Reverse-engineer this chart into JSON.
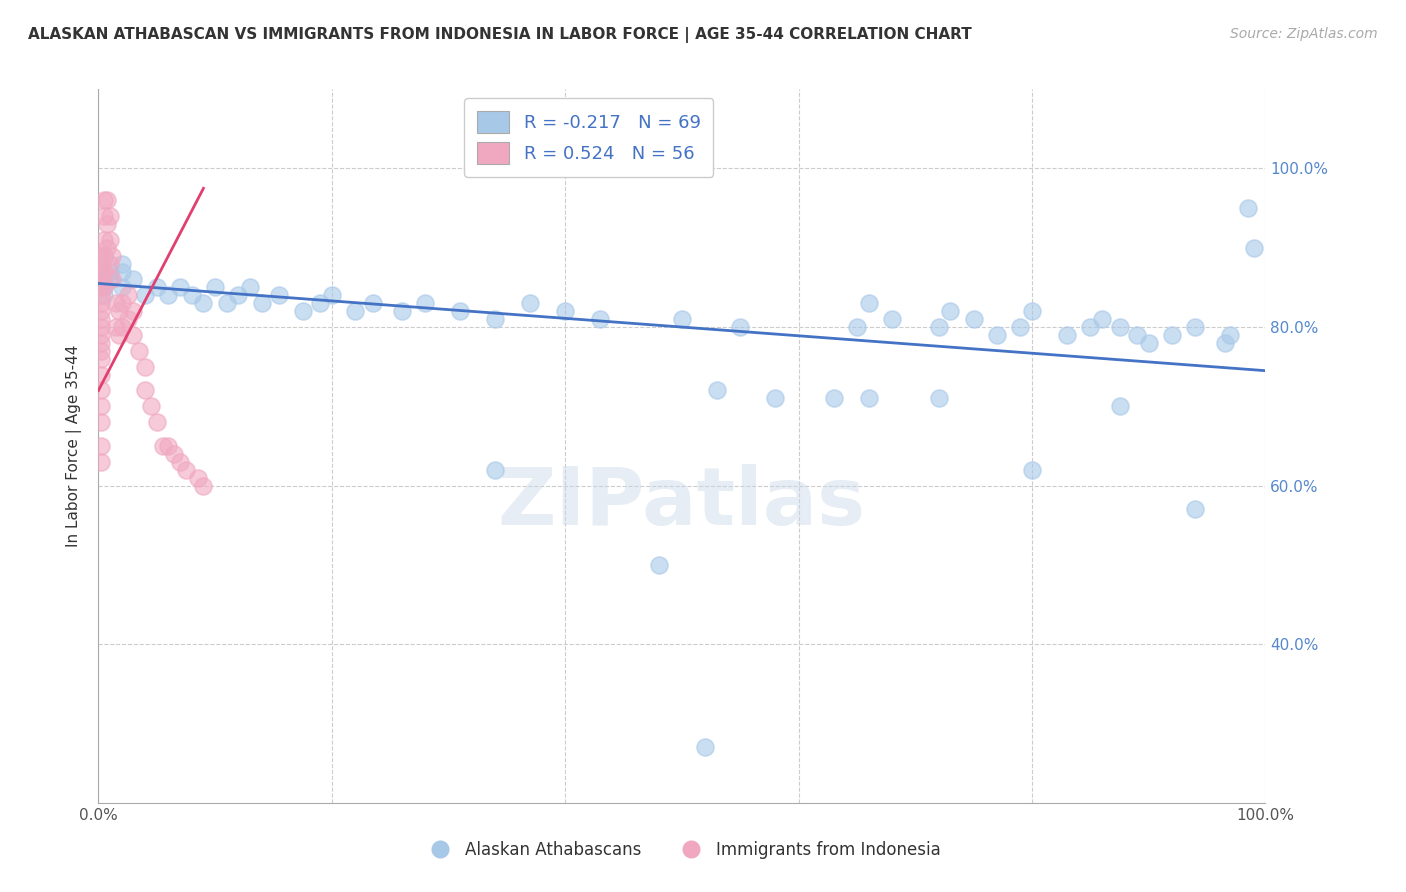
{
  "title": "ALASKAN ATHABASCAN VS IMMIGRANTS FROM INDONESIA IN LABOR FORCE | AGE 35-44 CORRELATION CHART",
  "source": "Source: ZipAtlas.com",
  "ylabel": "In Labor Force | Age 35-44",
  "xlim": [
    0.0,
    1.0
  ],
  "ylim": [
    0.2,
    1.1
  ],
  "legend_r_blue": "-0.217",
  "legend_n_blue": "69",
  "legend_r_pink": "0.524",
  "legend_n_pink": "56",
  "legend_label_blue": "Alaskan Athabascans",
  "legend_label_pink": "Immigrants from Indonesia",
  "blue_color": "#a8c8e8",
  "pink_color": "#f0a8c0",
  "trend_blue_color": "#4472c4",
  "trend_pink_color": "#e04070",
  "blue_scatter_x": [
    0.005,
    0.005,
    0.005,
    0.005,
    0.005,
    0.01,
    0.01,
    0.02,
    0.02,
    0.02,
    0.03,
    0.04,
    0.05,
    0.06,
    0.07,
    0.08,
    0.09,
    0.1,
    0.11,
    0.12,
    0.13,
    0.14,
    0.155,
    0.175,
    0.19,
    0.2,
    0.22,
    0.235,
    0.26,
    0.28,
    0.31,
    0.34,
    0.37,
    0.4,
    0.43,
    0.5,
    0.53,
    0.55,
    0.58,
    0.63,
    0.65,
    0.66,
    0.68,
    0.72,
    0.73,
    0.75,
    0.77,
    0.79,
    0.8,
    0.83,
    0.85,
    0.86,
    0.875,
    0.89,
    0.9,
    0.92,
    0.94,
    0.965,
    0.985,
    0.66,
    0.72,
    0.8,
    0.875,
    0.94,
    0.97,
    0.99,
    0.52,
    0.34,
    0.48
  ],
  "blue_scatter_y": [
    0.89,
    0.87,
    0.86,
    0.85,
    0.84,
    0.87,
    0.86,
    0.88,
    0.87,
    0.85,
    0.86,
    0.84,
    0.85,
    0.84,
    0.85,
    0.84,
    0.83,
    0.85,
    0.83,
    0.84,
    0.85,
    0.83,
    0.84,
    0.82,
    0.83,
    0.84,
    0.82,
    0.83,
    0.82,
    0.83,
    0.82,
    0.81,
    0.83,
    0.82,
    0.81,
    0.81,
    0.72,
    0.8,
    0.71,
    0.71,
    0.8,
    0.83,
    0.81,
    0.8,
    0.82,
    0.81,
    0.79,
    0.8,
    0.82,
    0.79,
    0.8,
    0.81,
    0.8,
    0.79,
    0.78,
    0.79,
    0.8,
    0.78,
    0.95,
    0.71,
    0.71,
    0.62,
    0.7,
    0.57,
    0.79,
    0.9,
    0.27,
    0.62,
    0.5
  ],
  "pink_scatter_x": [
    0.002,
    0.002,
    0.002,
    0.002,
    0.002,
    0.002,
    0.002,
    0.002,
    0.002,
    0.002,
    0.002,
    0.002,
    0.002,
    0.002,
    0.002,
    0.002,
    0.002,
    0.002,
    0.002,
    0.002,
    0.005,
    0.005,
    0.005,
    0.005,
    0.005,
    0.005,
    0.007,
    0.007,
    0.007,
    0.01,
    0.01,
    0.01,
    0.012,
    0.012,
    0.015,
    0.015,
    0.018,
    0.018,
    0.02,
    0.02,
    0.025,
    0.025,
    0.03,
    0.03,
    0.035,
    0.04,
    0.04,
    0.045,
    0.05,
    0.055,
    0.06,
    0.065,
    0.07,
    0.075,
    0.085,
    0.09
  ],
  "pink_scatter_y": [
    0.89,
    0.88,
    0.87,
    0.86,
    0.85,
    0.84,
    0.83,
    0.82,
    0.81,
    0.8,
    0.79,
    0.78,
    0.77,
    0.76,
    0.74,
    0.72,
    0.7,
    0.68,
    0.65,
    0.63,
    0.96,
    0.94,
    0.91,
    0.89,
    0.87,
    0.85,
    0.96,
    0.93,
    0.9,
    0.94,
    0.91,
    0.88,
    0.89,
    0.86,
    0.83,
    0.8,
    0.82,
    0.79,
    0.83,
    0.8,
    0.84,
    0.81,
    0.82,
    0.79,
    0.77,
    0.75,
    0.72,
    0.7,
    0.68,
    0.65,
    0.65,
    0.64,
    0.63,
    0.62,
    0.61,
    0.6
  ],
  "blue_trend_x": [
    0.0,
    1.0
  ],
  "blue_trend_y": [
    0.855,
    0.745
  ],
  "pink_trend_x": [
    0.0,
    0.09
  ],
  "pink_trend_y": [
    0.72,
    0.975
  ]
}
